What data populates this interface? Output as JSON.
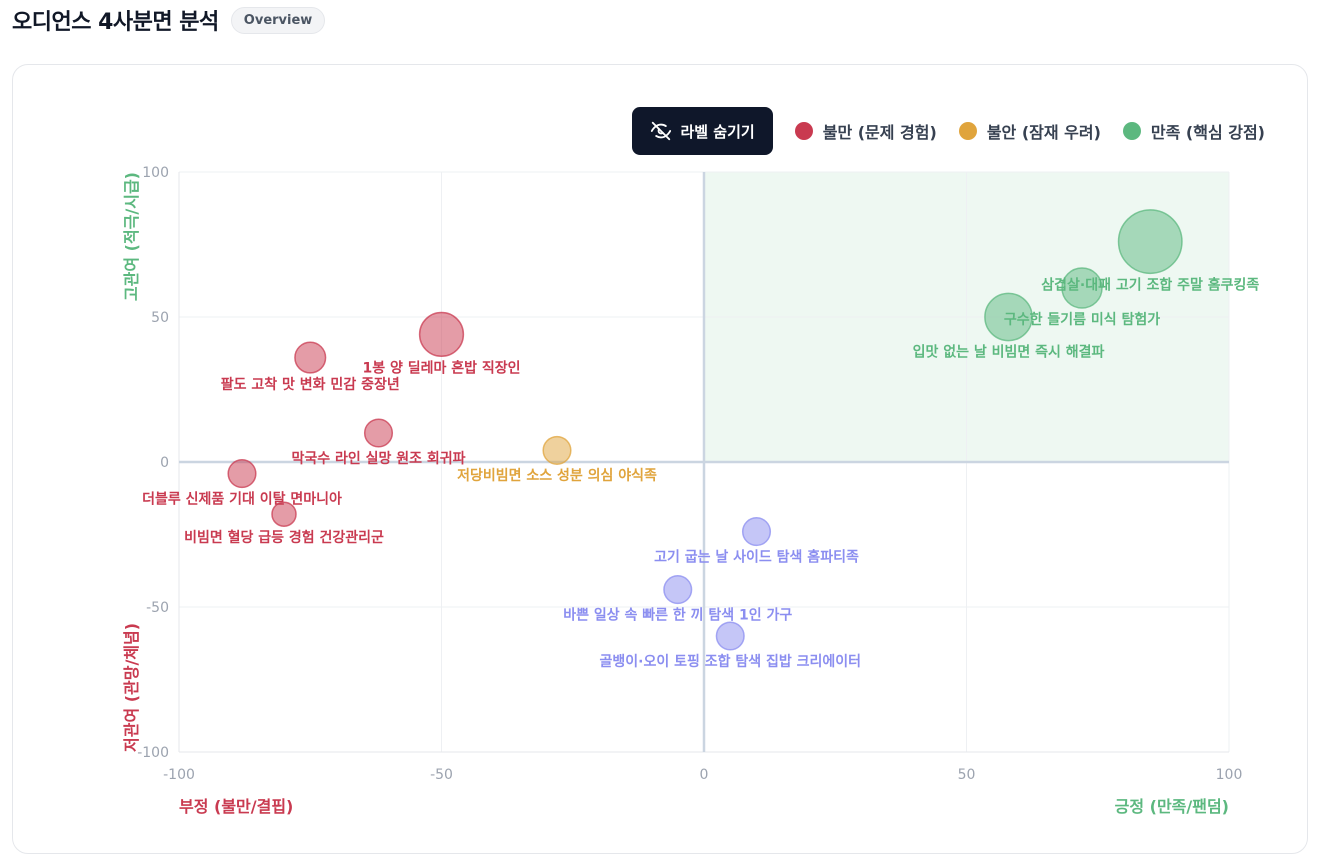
{
  "header": {
    "title": "오디언스 4사분면 분석",
    "badge": "Overview"
  },
  "toolbar": {
    "toggle_label": "라벨 숨기기",
    "toggle_icon": "eye-off-icon"
  },
  "colors": {
    "dissatisfied": "#c93a50",
    "anxious": "#e0a43c",
    "satisfied": "#5cb87f",
    "neutral": "#8b8ef0"
  },
  "chart_data": {
    "type": "scatter",
    "xlim": [
      -100,
      100
    ],
    "ylim": [
      -100,
      100
    ],
    "x_ticks": [
      -100,
      -50,
      0,
      50,
      100
    ],
    "y_ticks": [
      100,
      50,
      0,
      -50,
      -100
    ],
    "grid": true,
    "legend_position": "top-right",
    "legend": [
      {
        "key": "dissatisfied",
        "label": "불만 (문제 경험)"
      },
      {
        "key": "anxious",
        "label": "불안 (잠재 우려)"
      },
      {
        "key": "satisfied",
        "label": "만족 (핵심 강점)"
      }
    ],
    "axis_titles": {
      "x_negative": "부정 (불만/결핍)",
      "x_positive": "긍정 (만족/팬덤)",
      "y_positive": "고관여 (적극/시급)",
      "y_negative": "저관여 (관망/체념)"
    },
    "points": [
      {
        "label": "1봉 양 딜레마 혼밥 직장인",
        "x": -50,
        "y": 44,
        "size": 5,
        "group": "dissatisfied"
      },
      {
        "label": "팔도 고착 맛 변화 민감 중장년",
        "x": -75,
        "y": 36,
        "size": 2,
        "group": "dissatisfied"
      },
      {
        "label": "막국수 라인 실망 원조 회귀파",
        "x": -62,
        "y": 10,
        "size": 1.5,
        "group": "dissatisfied"
      },
      {
        "label": "더블루 신제품 기대 이탈 면마니아",
        "x": -88,
        "y": -4,
        "size": 1.5,
        "group": "dissatisfied"
      },
      {
        "label": "비빔면 혈당 급등 경험 건강관리군",
        "x": -80,
        "y": -18,
        "size": 1,
        "group": "dissatisfied"
      },
      {
        "label": "저당비빔면 소스 성분 의심 야식족",
        "x": -28,
        "y": 4,
        "size": 1.5,
        "group": "anxious"
      },
      {
        "label": "삼겹살·대패 고기 조합 주말 홈쿠킹족",
        "x": 85,
        "y": 76,
        "size": 12,
        "group": "satisfied"
      },
      {
        "label": "구수한 들기름 미식 탐험가",
        "x": 72,
        "y": 60,
        "size": 4,
        "group": "satisfied"
      },
      {
        "label": "입맛 없는 날 비빔면 즉시 해결파",
        "x": 58,
        "y": 50,
        "size": 6,
        "group": "satisfied"
      },
      {
        "label": "고기 굽는 날 사이드 탐색 홈파티족",
        "x": 10,
        "y": -24,
        "size": 1.5,
        "group": "neutral"
      },
      {
        "label": "바쁜 일상 속 빠른 한 끼 탐색 1인 가구",
        "x": -5,
        "y": -44,
        "size": 1.5,
        "group": "neutral"
      },
      {
        "label": "골뱅이·오이 토핑 조합 탐색 집밥 크리에이터",
        "x": 5,
        "y": -60,
        "size": 1.5,
        "group": "neutral"
      }
    ]
  }
}
